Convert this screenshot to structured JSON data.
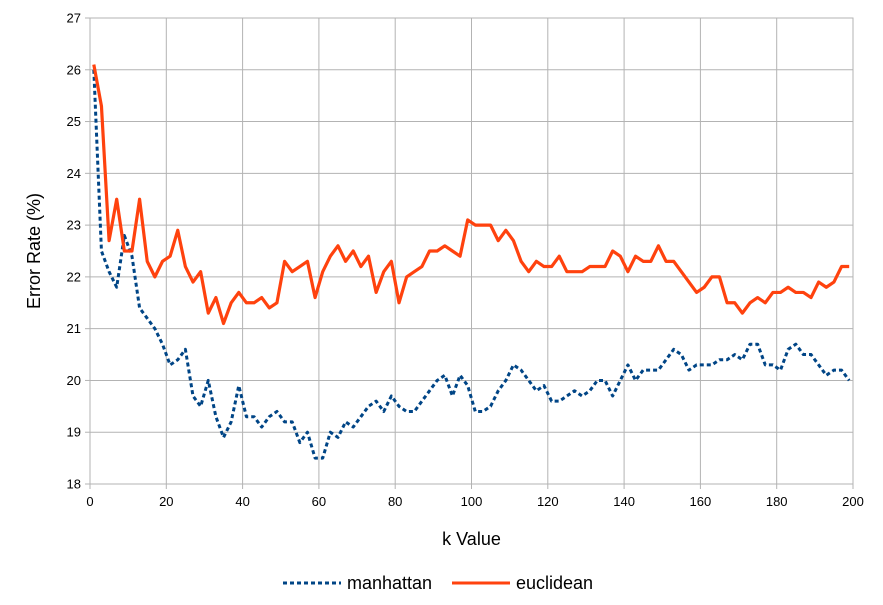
{
  "chart_data": {
    "type": "line",
    "xlabel": "k Value",
    "ylabel": "Error Rate (%)",
    "xlim": [
      0,
      200
    ],
    "ylim": [
      18,
      27
    ],
    "xticks": [
      0,
      20,
      40,
      60,
      80,
      100,
      120,
      140,
      160,
      180,
      200
    ],
    "yticks": [
      18,
      19,
      20,
      21,
      22,
      23,
      24,
      25,
      26,
      27
    ],
    "grid": true,
    "legend_position": "bottom",
    "x": [
      1,
      3,
      5,
      7,
      9,
      11,
      13,
      15,
      17,
      19,
      21,
      23,
      25,
      27,
      29,
      31,
      33,
      35,
      37,
      39,
      41,
      43,
      45,
      47,
      49,
      51,
      53,
      55,
      57,
      59,
      61,
      63,
      65,
      67,
      69,
      71,
      73,
      75,
      77,
      79,
      81,
      83,
      85,
      87,
      89,
      91,
      93,
      95,
      97,
      99,
      101,
      103,
      105,
      107,
      109,
      111,
      113,
      115,
      117,
      119,
      121,
      123,
      125,
      127,
      129,
      131,
      133,
      135,
      137,
      139,
      141,
      143,
      145,
      147,
      149,
      151,
      153,
      155,
      157,
      159,
      161,
      163,
      165,
      167,
      169,
      171,
      173,
      175,
      177,
      179,
      181,
      183,
      185,
      187,
      189,
      191,
      193,
      195,
      197,
      199
    ],
    "series": [
      {
        "name": "manhattan",
        "color": "#004586",
        "style": "dashed",
        "values": [
          26.0,
          22.5,
          22.1,
          21.8,
          22.8,
          22.4,
          21.4,
          21.2,
          21.0,
          20.7,
          20.3,
          20.4,
          20.6,
          19.7,
          19.5,
          20.0,
          19.3,
          18.9,
          19.2,
          19.9,
          19.3,
          19.3,
          19.1,
          19.3,
          19.4,
          19.2,
          19.2,
          18.8,
          19.0,
          18.5,
          18.5,
          19.0,
          18.9,
          19.2,
          19.1,
          19.3,
          19.5,
          19.6,
          19.4,
          19.7,
          19.5,
          19.4,
          19.4,
          19.6,
          19.8,
          20.0,
          20.1,
          19.7,
          20.1,
          19.9,
          19.4,
          19.4,
          19.5,
          19.8,
          20.0,
          20.3,
          20.2,
          20.0,
          19.8,
          19.9,
          19.6,
          19.6,
          19.7,
          19.8,
          19.7,
          19.8,
          20.0,
          20.0,
          19.7,
          20.0,
          20.3,
          20.0,
          20.2,
          20.2,
          20.2,
          20.4,
          20.6,
          20.5,
          20.2,
          20.3,
          20.3,
          20.3,
          20.4,
          20.4,
          20.5,
          20.4,
          20.7,
          20.7,
          20.3,
          20.3,
          20.2,
          20.6,
          20.7,
          20.5,
          20.5,
          20.3,
          20.1,
          20.2,
          20.2,
          20.0
        ]
      },
      {
        "name": "euclidean",
        "color": "#ff420e",
        "style": "solid",
        "values": [
          26.1,
          25.3,
          22.7,
          23.5,
          22.5,
          22.5,
          23.5,
          22.3,
          22.0,
          22.3,
          22.4,
          22.9,
          22.2,
          21.9,
          22.1,
          21.3,
          21.6,
          21.1,
          21.5,
          21.7,
          21.5,
          21.5,
          21.6,
          21.4,
          21.5,
          22.3,
          22.1,
          22.2,
          22.3,
          21.6,
          22.1,
          22.4,
          22.6,
          22.3,
          22.5,
          22.2,
          22.4,
          21.7,
          22.1,
          22.3,
          21.5,
          22.0,
          22.1,
          22.2,
          22.5,
          22.5,
          22.6,
          22.5,
          22.4,
          23.1,
          23.0,
          23.0,
          23.0,
          22.7,
          22.9,
          22.7,
          22.3,
          22.1,
          22.3,
          22.2,
          22.2,
          22.4,
          22.1,
          22.1,
          22.1,
          22.2,
          22.2,
          22.2,
          22.5,
          22.4,
          22.1,
          22.4,
          22.3,
          22.3,
          22.6,
          22.3,
          22.3,
          22.1,
          21.9,
          21.7,
          21.8,
          22.0,
          22.0,
          21.5,
          21.5,
          21.3,
          21.5,
          21.6,
          21.5,
          21.7,
          21.7,
          21.8,
          21.7,
          21.7,
          21.6,
          21.9,
          21.8,
          21.9,
          22.2,
          22.2
        ]
      }
    ]
  }
}
